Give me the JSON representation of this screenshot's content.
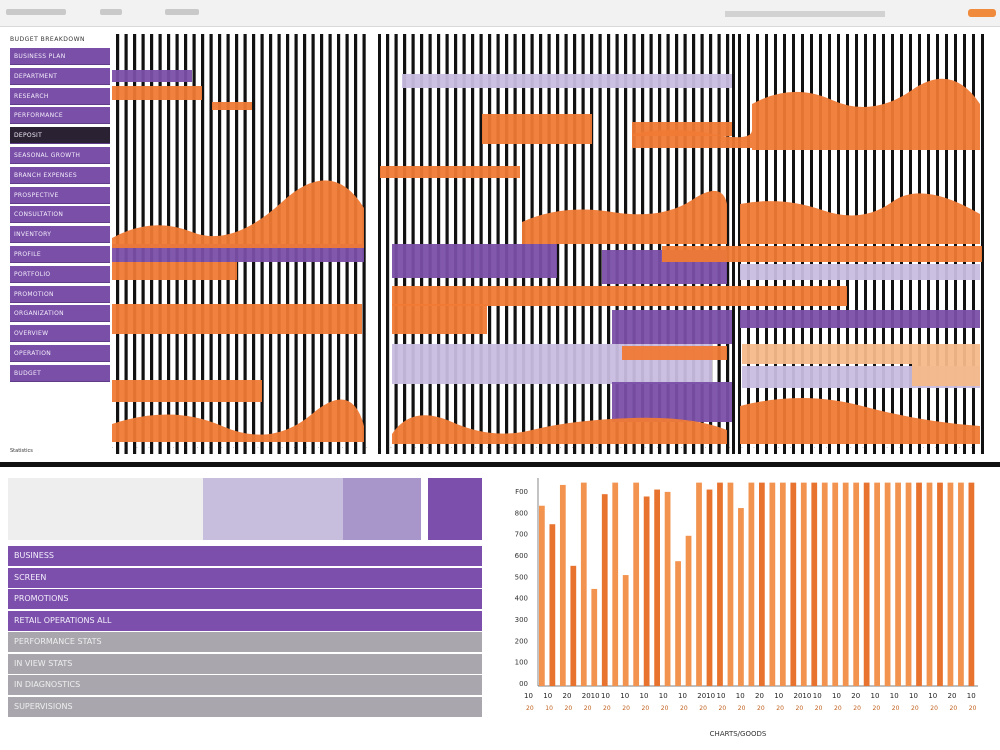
{
  "colors": {
    "purple": "#7a4fa8",
    "orange": "#f07a35",
    "lavender": "#c9bde0",
    "peach": "#f6b98a",
    "ink": "#111111",
    "grey": "#a9a7ad"
  },
  "window": {
    "title_blocks": 3
  },
  "sidebar": {
    "heading": "BUDGET BREAKDOWN",
    "items": [
      {
        "label": "BUSINESS PLAN"
      },
      {
        "label": "DEPARTMENT"
      },
      {
        "label": "RESEARCH"
      },
      {
        "label": "PERFORMANCE"
      },
      {
        "label": "DEPOSIT"
      },
      {
        "label": "SEASONAL GROWTH"
      },
      {
        "label": "BRANCH EXPENSES"
      },
      {
        "label": "PROSPECTIVE"
      },
      {
        "label": "CONSULTATION"
      },
      {
        "label": "INVENTORY"
      },
      {
        "label": "PROFILE"
      },
      {
        "label": "PORTFOLIO"
      },
      {
        "label": "PROMOTION"
      },
      {
        "label": "ORGANIZATION"
      },
      {
        "label": "OVERVIEW"
      },
      {
        "label": "OPERATION"
      },
      {
        "label": "BUDGET"
      }
    ],
    "footer_label": "Statistics"
  },
  "lower_list": {
    "rows": [
      {
        "label": "BUSINESS",
        "tone": "p"
      },
      {
        "label": "SCREEN",
        "tone": "p"
      },
      {
        "label": "PROMOTIONS",
        "tone": "p"
      },
      {
        "label": "RETAIL OPERATIONS ALL",
        "tone": "p"
      },
      {
        "label": "PERFORMANCE STATS",
        "tone": "g"
      },
      {
        "label": "IN VIEW STATS",
        "tone": "g"
      },
      {
        "label": "IN DIAGNOSTICS",
        "tone": "g"
      },
      {
        "label": "SUPERVISIONS",
        "tone": "g"
      }
    ]
  },
  "chart_data": {
    "type": "bar",
    "title": "",
    "xlabel": "CHARTS/GOODS",
    "ylabel": "",
    "yticks": [
      "F00",
      "800",
      "700",
      "600",
      "500",
      "400",
      "300",
      "200",
      "100",
      "00"
    ],
    "ylim": [
      0,
      900
    ],
    "x_tick_row1": [
      "10",
      "10",
      "20",
      "2010",
      "10",
      "10",
      "10",
      "10",
      "10",
      "2010",
      "10",
      "10",
      "20",
      "10",
      "2010",
      "10",
      "10",
      "20",
      "10",
      "10",
      "10",
      "10",
      "20",
      "10"
    ],
    "x_tick_row2": [
      "20",
      "10",
      "20",
      "20",
      "20",
      "20",
      "20",
      "20",
      "20",
      "20",
      "20",
      "20",
      "20",
      "20",
      "20",
      "20",
      "20",
      "20",
      "20",
      "20",
      "20",
      "20",
      "20",
      "20"
    ],
    "series": [
      {
        "values": [
          780,
          700,
          870,
          520,
          880,
          420,
          830,
          880,
          480,
          880,
          820,
          850,
          840,
          540,
          650,
          880,
          850,
          880,
          880,
          770,
          880,
          880,
          880,
          880,
          880,
          880,
          880,
          880,
          880,
          880,
          880,
          880,
          880,
          880,
          880,
          880,
          880,
          880,
          880,
          880,
          880,
          880
        ]
      }
    ]
  }
}
